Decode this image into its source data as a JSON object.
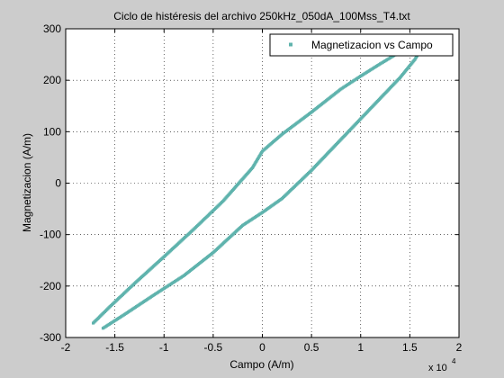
{
  "chart_data": {
    "type": "scatter",
    "title": "Ciclo de histéresis del archivo 250kHz_050dA_100Mss_T4.txt",
    "xlabel": "Campo (A/m)",
    "ylabel": "Magnetizacion (A/m)",
    "x_multiplier_label": "x 10",
    "x_multiplier_exponent": "4",
    "xlim": [
      -2,
      2
    ],
    "ylim": [
      -300,
      300
    ],
    "x_ticks": [
      -2,
      -1.5,
      -1,
      -0.5,
      0,
      0.5,
      1,
      1.5,
      2
    ],
    "y_ticks": [
      -300,
      -200,
      -100,
      0,
      100,
      200,
      300
    ],
    "x_tick_labels": [
      "-2",
      "-1.5",
      "-1",
      "-0.5",
      "0",
      "0.5",
      "1",
      "1.5",
      "2"
    ],
    "y_tick_labels": [
      "-300",
      "-200",
      "-100",
      "0",
      "100",
      "200",
      "300"
    ],
    "grid": "dotted",
    "legend_position": "top-right",
    "series": [
      {
        "name": "Magnetizacion vs Campo",
        "color": "#5fb3ad",
        "upper_branch": {
          "x": [
            -1.72,
            -1.55,
            -1.3,
            -1.0,
            -0.7,
            -0.4,
            -0.1,
            0.0,
            0.2,
            0.5,
            0.8,
            1.0,
            1.2,
            1.4,
            1.5
          ],
          "y": [
            -272,
            -240,
            -195,
            -143,
            -90,
            -35,
            30,
            62,
            95,
            138,
            183,
            208,
            232,
            255,
            262
          ]
        },
        "lower_branch": {
          "x": [
            -1.62,
            -1.4,
            -1.1,
            -0.8,
            -0.5,
            -0.2,
            0.0,
            0.2,
            0.5,
            0.8,
            1.0,
            1.2,
            1.4,
            1.55,
            1.62
          ],
          "y": [
            -282,
            -255,
            -217,
            -180,
            -135,
            -82,
            -57,
            -30,
            25,
            85,
            125,
            165,
            205,
            240,
            262
          ]
        }
      }
    ]
  }
}
